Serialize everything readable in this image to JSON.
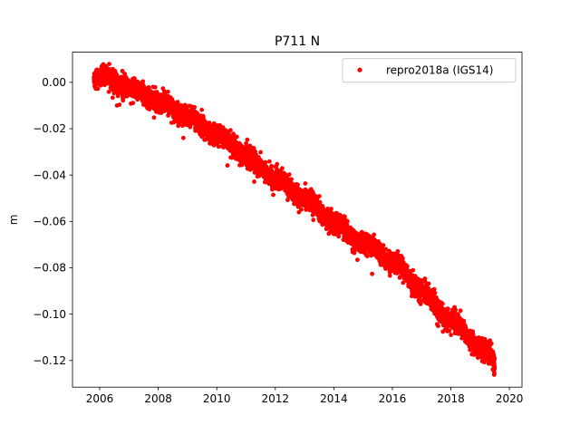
{
  "chart_data": {
    "type": "scatter",
    "title": "P711 N",
    "xlabel": "",
    "ylabel": "m",
    "xlim": [
      2005.07,
      2020.43
    ],
    "ylim": [
      -0.1315,
      0.013
    ],
    "x_ticks": [
      2006,
      2008,
      2010,
      2012,
      2014,
      2016,
      2018,
      2020
    ],
    "x_tick_labels": [
      "2006",
      "2008",
      "2010",
      "2012",
      "2014",
      "2016",
      "2018",
      "2020"
    ],
    "y_ticks": [
      0.0,
      -0.02,
      -0.04,
      -0.06,
      -0.08,
      -0.1,
      -0.12
    ],
    "y_tick_labels": [
      "0.00",
      "−0.02",
      "−0.04",
      "−0.06",
      "−0.08",
      "−0.10",
      "−0.12"
    ],
    "grid": false,
    "legend_position": "top-right",
    "series": [
      {
        "name": "repro2018a (IGS14)",
        "color": "#ff0000",
        "marker": "dot",
        "trend": {
          "x": [
            2005.8,
            2006.5,
            2007.0,
            2007.5,
            2008.0,
            2008.5,
            2009.0,
            2009.5,
            2010.0,
            2010.5,
            2011.0,
            2011.5,
            2012.0,
            2012.5,
            2013.0,
            2013.5,
            2014.0,
            2014.5,
            2015.0,
            2015.5,
            2016.0,
            2016.5,
            2017.0,
            2017.5,
            2018.0,
            2018.5,
            2019.0,
            2019.5
          ],
          "y": [
            0.0025,
            0.0005,
            -0.002,
            -0.005,
            -0.0085,
            -0.012,
            -0.0145,
            -0.0185,
            -0.0225,
            -0.027,
            -0.032,
            -0.0365,
            -0.0415,
            -0.046,
            -0.05,
            -0.055,
            -0.06,
            -0.0655,
            -0.0695,
            -0.0725,
            -0.0775,
            -0.083,
            -0.09,
            -0.097,
            -0.1025,
            -0.1085,
            -0.1145,
            -0.1205
          ]
        },
        "start_x": 2005.8,
        "end_x": 2019.5,
        "scatter": 0.0022
      }
    ]
  }
}
